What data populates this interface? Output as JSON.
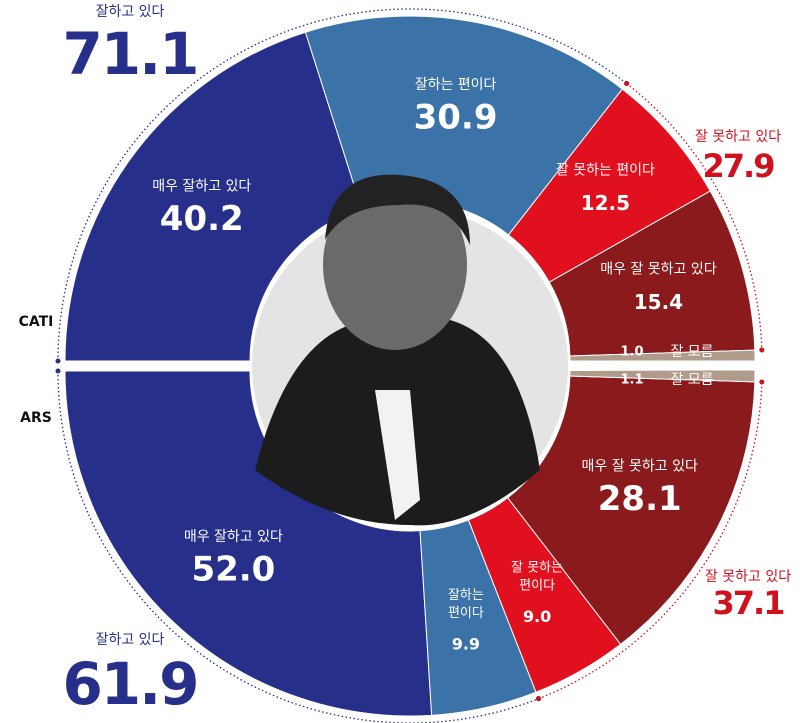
{
  "chart_data": [
    {
      "type": "half-donut",
      "name": "CATI",
      "half": "top",
      "categories": [
        "매우 잘하고 있다",
        "잘하는 편이다",
        "잘 못하는 편이다",
        "매우 잘 못하고 있다",
        "잘 모름"
      ],
      "values": [
        40.2,
        30.9,
        12.5,
        15.4,
        1.0
      ],
      "value_labels": [
        "40.2",
        "30.9",
        "12.5",
        "15.4",
        "1.0"
      ],
      "colors": [
        "#262f8a",
        "#3b73a8",
        "#e0101e",
        "#8a1a1c",
        "#b09a8a"
      ],
      "summary": [
        {
          "label": "잘하고 있다",
          "value": 71.1,
          "color": "#262f8a"
        },
        {
          "label": "잘 못하고 있다",
          "value": 27.9,
          "color": "#d0101c"
        }
      ]
    },
    {
      "type": "half-donut",
      "name": "ARS",
      "half": "bottom",
      "categories": [
        "매우 잘하고 있다",
        "잘하는 편이다",
        "잘 못하는 편이다",
        "매우 잘 못하고 있다",
        "잘 모름"
      ],
      "values": [
        52.0,
        9.9,
        9.0,
        28.1,
        1.1
      ],
      "value_labels": [
        "52.0",
        "9.9",
        "9.0",
        "28.1",
        "1.1"
      ],
      "colors": [
        "#262f8a",
        "#3b73a8",
        "#e0101e",
        "#8a1a1c",
        "#b09a8a"
      ],
      "summary": [
        {
          "label": "잘하고 있다",
          "value": 61.9,
          "color": "#262f8a"
        },
        {
          "label": "잘 못하고 있다",
          "value": 37.1,
          "color": "#d0101c"
        }
      ]
    }
  ]
}
